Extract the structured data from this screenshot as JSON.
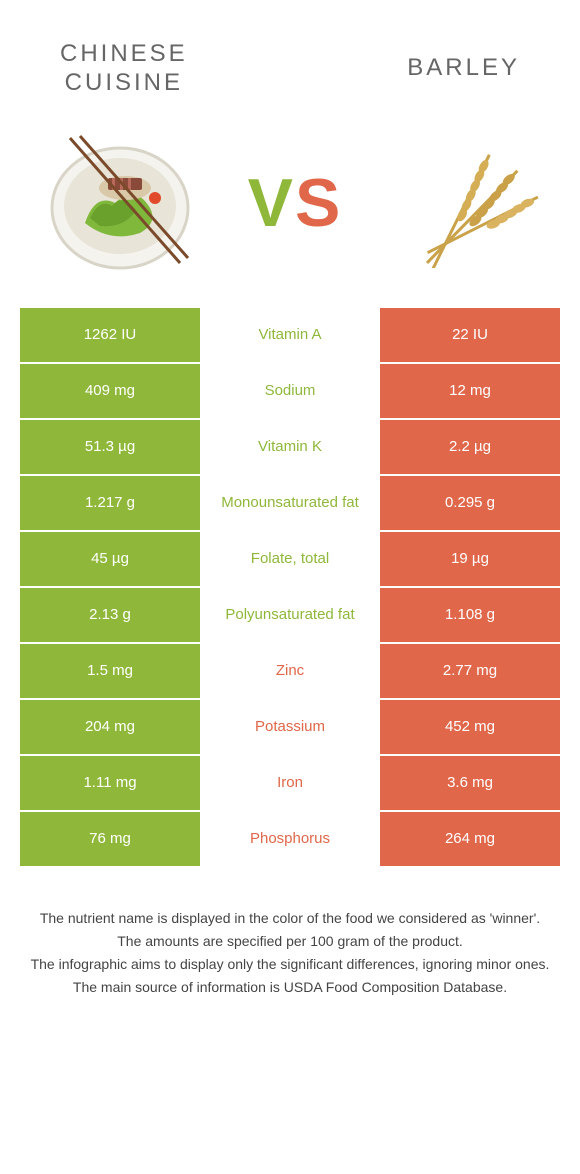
{
  "colors": {
    "green": "#8fb83a",
    "orange": "#e0674a",
    "title_gray": "#666666",
    "footnote_color": "#444444"
  },
  "header": {
    "left_title_line1": "CHINESE",
    "left_title_line2": "CUISINE",
    "right_title": "BARLEY",
    "vs_v": "V",
    "vs_s": "S"
  },
  "table": {
    "rows": [
      {
        "left": "1262 IU",
        "label": "Vitamin A",
        "right": "22 IU",
        "winner": "left"
      },
      {
        "left": "409 mg",
        "label": "Sodium",
        "right": "12 mg",
        "winner": "left"
      },
      {
        "left": "51.3 µg",
        "label": "Vitamin K",
        "right": "2.2 µg",
        "winner": "left"
      },
      {
        "left": "1.217 g",
        "label": "Monounsaturated fat",
        "right": "0.295 g",
        "winner": "left"
      },
      {
        "left": "45 µg",
        "label": "Folate, total",
        "right": "19 µg",
        "winner": "left"
      },
      {
        "left": "2.13 g",
        "label": "Polyunsaturated fat",
        "right": "1.108 g",
        "winner": "left"
      },
      {
        "left": "1.5 mg",
        "label": "Zinc",
        "right": "2.77 mg",
        "winner": "right"
      },
      {
        "left": "204 mg",
        "label": "Potassium",
        "right": "452 mg",
        "winner": "right"
      },
      {
        "left": "1.11 mg",
        "label": "Iron",
        "right": "3.6 mg",
        "winner": "right"
      },
      {
        "left": "76 mg",
        "label": "Phosphorus",
        "right": "264 mg",
        "winner": "right"
      }
    ]
  },
  "footnotes": {
    "line1": "The nutrient name is displayed in the color of the food we considered as 'winner'.",
    "line2": "The amounts are specified per 100 gram of the product.",
    "line3": "The infographic aims to display only the significant differences, ignoring minor ones.",
    "line4": "The main source of information is USDA Food Composition Database."
  }
}
